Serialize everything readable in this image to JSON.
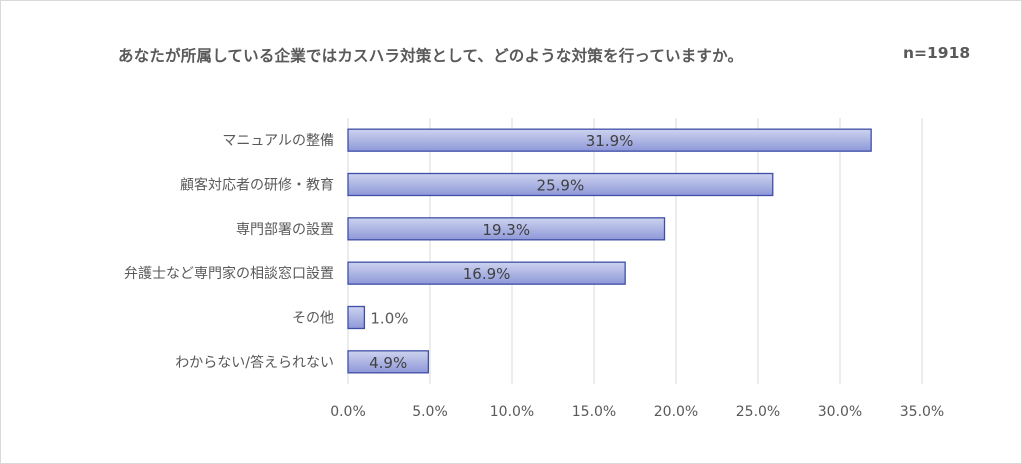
{
  "chart_data": {
    "type": "bar",
    "orientation": "horizontal",
    "title": "あなたが所属している企業ではカスハラ対策として、どのような対策を行っていますか。",
    "subtitle": "n=1918",
    "categories": [
      "マニュアルの整備",
      "顧客対応者の研修・教育",
      "専門部署の設置",
      "弁護士など専門家の相談窓口設置",
      "その他",
      "わからない/答えられない"
    ],
    "values": [
      31.9,
      25.9,
      19.3,
      16.9,
      1.0,
      4.9
    ],
    "value_labels": [
      "31.9%",
      "25.9%",
      "19.3%",
      "16.9%",
      "1.0%",
      "4.9%"
    ],
    "xlim": [
      0,
      35
    ],
    "x_ticks": [
      "0.0%",
      "5.0%",
      "10.0%",
      "15.0%",
      "20.0%",
      "25.0%",
      "30.0%",
      "35.0%"
    ],
    "xlabel": "",
    "ylabel": "",
    "grid": "vertical",
    "legend": "none",
    "colors": {
      "bar_fill_light": "#cdd3ef",
      "bar_fill_dark": "#8e98d8",
      "bar_stroke": "#3f4fa8",
      "gridline": "#d9d9d9",
      "text": "#595959"
    }
  }
}
